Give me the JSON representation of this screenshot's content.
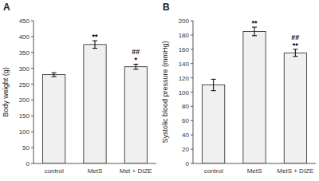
{
  "chart_data": [
    {
      "type": "bar",
      "title": "A",
      "categories": [
        "control",
        "MetS",
        "Met + DIZE"
      ],
      "values": [
        280,
        375,
        305
      ],
      "errors": [
        6,
        12,
        8
      ],
      "ylabel": "Body weight (g)",
      "ylim": [
        0,
        450
      ],
      "yticks": [
        0,
        50,
        100,
        150,
        200,
        250,
        300,
        350,
        400,
        450
      ],
      "color": "#f0f0f0",
      "grid": false,
      "annotations": [
        {
          "category": "MetS",
          "text": "**"
        },
        {
          "category": "Met + DIZE",
          "text": "*"
        },
        {
          "category": "Met + DIZE",
          "text": "##"
        }
      ]
    },
    {
      "type": "bar",
      "title": "B",
      "categories": [
        "control",
        "MetS",
        "MetS + DIZE"
      ],
      "values": [
        110,
        185,
        155
      ],
      "errors": [
        8,
        6,
        5
      ],
      "ylabel": "Systolic blood pressure (mmHg)",
      "ylim": [
        0,
        200
      ],
      "yticks": [
        0,
        20,
        40,
        60,
        80,
        100,
        120,
        140,
        160,
        180,
        200
      ],
      "color": "#f0f0f0",
      "grid": false,
      "annotations": [
        {
          "category": "MetS",
          "text": "**"
        },
        {
          "category": "MetS + DIZE",
          "text": "**"
        },
        {
          "category": "MetS + DIZE",
          "text": "##"
        }
      ]
    }
  ]
}
